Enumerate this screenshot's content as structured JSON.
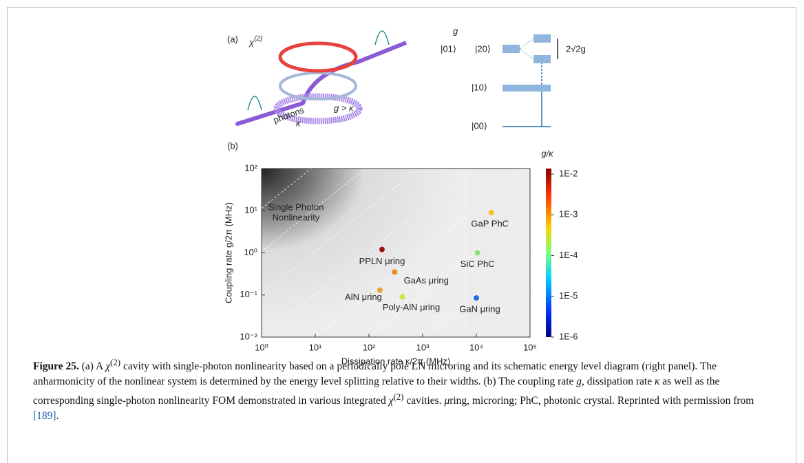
{
  "panel_a": {
    "label": "(a)",
    "chi": "χ",
    "chi_order": "(2)",
    "photons": "photons",
    "kappa": "κ",
    "coupling": "g > κ",
    "level_01": "|01⟩",
    "level_20": "|20⟩",
    "g": "g",
    "splitting": "2√2g",
    "level_10": "|10⟩",
    "level_00": "|00⟩"
  },
  "chart_data": {
    "type": "scatter",
    "panel_label": "(b)",
    "xlabel": "Dissipation rate κ/2π (MHz)",
    "ylabel": "Coupling rate g/2π (MHz)",
    "xscale": "log",
    "yscale": "log",
    "xlim": [
      1,
      100000
    ],
    "ylim": [
      0.01,
      100
    ],
    "xticks": [
      {
        "value": 1,
        "label": "10⁰"
      },
      {
        "value": 10,
        "label": "10¹"
      },
      {
        "value": 100,
        "label": "10²"
      },
      {
        "value": 1000,
        "label": "10³"
      },
      {
        "value": 10000,
        "label": "10⁴"
      },
      {
        "value": 100000,
        "label": "10⁵"
      }
    ],
    "yticks": [
      {
        "value": 0.01,
        "label": "10⁻²"
      },
      {
        "value": 0.1,
        "label": "10⁻¹"
      },
      {
        "value": 1,
        "label": "10⁰"
      },
      {
        "value": 10,
        "label": "10¹"
      },
      {
        "value": 100,
        "label": "10²"
      }
    ],
    "annotation": [
      "Single Photon",
      "Nonlinearity"
    ],
    "points": [
      {
        "label": "PPLN μring",
        "x": 175,
        "y": 1.2,
        "color": "#9b0f0f"
      },
      {
        "label": "GaP PhC",
        "x": 19000,
        "y": 9,
        "color": "#f2c12e"
      },
      {
        "label": "SiC PhC",
        "x": 10500,
        "y": 1.0,
        "color": "#8fe07a"
      },
      {
        "label": "GaAs μring",
        "x": 300,
        "y": 0.35,
        "color": "#ef8a24"
      },
      {
        "label": "AlN μring",
        "x": 160,
        "y": 0.13,
        "color": "#f0a23a"
      },
      {
        "label": "Poly-AlN μring",
        "x": 420,
        "y": 0.09,
        "color": "#c8e64a"
      },
      {
        "label": "GaN μring",
        "x": 10000,
        "y": 0.085,
        "color": "#1f6fe0"
      }
    ],
    "colorbar": {
      "title": "g/κ",
      "lim": [
        1e-06,
        0.01
      ],
      "ticks": [
        {
          "value": 0.01,
          "label": "1E-2"
        },
        {
          "value": 0.001,
          "label": "1E-3"
        },
        {
          "value": 0.0001,
          "label": "1E-4"
        },
        {
          "value": 1e-05,
          "label": "1E-5"
        },
        {
          "value": 1e-06,
          "label": "1E-6"
        }
      ]
    }
  },
  "caption": {
    "parts": [
      "Figure 25.",
      " (a) A ",
      "χ",
      "(2)",
      " cavity with single-photon nonlinearity based on a periodically pole LN microring and its schematic energy level diagram (right panel). The anharmonicity of the nonlinear system is determined by the energy level splitting relative to their widths. (b) The coupling rate ",
      "g",
      ", dissipation rate ",
      "κ",
      " as well as the corresponding single-photon nonlinearity FOM demonstrated in various integrated ",
      "χ",
      "(2)",
      " cavities. ",
      "μ",
      "ring, microring; PhC, photonic crystal. Reprinted with permission from ",
      "[189]",
      "."
    ]
  }
}
